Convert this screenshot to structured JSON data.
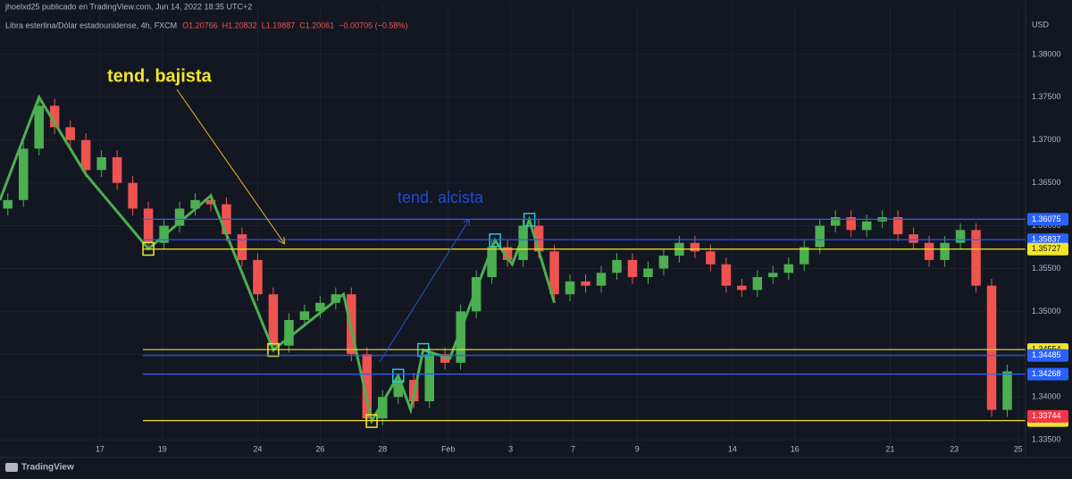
{
  "chart_data": {
    "type": "candlestick",
    "author_line": "jhoelxd25 publicado en TradingView.com, Jun 14, 2022 18:35 UTC+2",
    "symbol": "Libra esterlina/Dólar estadounidense, 4h, FXCM",
    "ohlc_header": [
      "O1.20766",
      "H1.20832",
      "L1.19887",
      "C1.20061",
      "−0.00705 (−0.58%)"
    ],
    "currency": "USD",
    "brand": "TradingView",
    "annotations": [
      "tend. bajista",
      "tend. alcista"
    ],
    "up_color": "#4caf50",
    "down_color": "#ef5350",
    "x": [
      0,
      1,
      2,
      3,
      4,
      5,
      6,
      7,
      8,
      9,
      10,
      11,
      12,
      13,
      14,
      15,
      16,
      17,
      18,
      19,
      20,
      21,
      22,
      23,
      24,
      25,
      26,
      27,
      28,
      29,
      30,
      31,
      32,
      33,
      34,
      35,
      36,
      37,
      38,
      39,
      40,
      41,
      42,
      43,
      44,
      45,
      46,
      47,
      48,
      49,
      50,
      51,
      52,
      53,
      54,
      55,
      56,
      57,
      58,
      59,
      60,
      61,
      62,
      63,
      64
    ],
    "open": [
      1.362,
      1.363,
      1.369,
      1.374,
      1.3715,
      1.37,
      1.3665,
      1.368,
      1.365,
      1.362,
      1.358,
      1.36,
      1.362,
      1.363,
      1.3625,
      1.359,
      1.356,
      1.352,
      1.346,
      1.349,
      1.35,
      1.351,
      1.352,
      1.345,
      1.3375,
      1.34,
      1.342,
      1.3395,
      1.345,
      1.344,
      1.35,
      1.354,
      1.3575,
      1.356,
      1.36,
      1.357,
      1.352,
      1.3535,
      1.353,
      1.3545,
      1.356,
      1.354,
      1.355,
      1.3565,
      1.358,
      1.357,
      1.3555,
      1.353,
      1.3525,
      1.354,
      1.3545,
      1.3555,
      1.3575,
      1.36,
      1.361,
      1.3595,
      1.3605,
      1.361,
      1.359,
      1.358,
      1.356,
      1.358,
      1.3595,
      1.353,
      1.3385
    ],
    "high": [
      1.3638,
      1.3698,
      1.3748,
      1.3748,
      1.3723,
      1.3708,
      1.3688,
      1.3688,
      1.3658,
      1.3628,
      1.3608,
      1.3628,
      1.3638,
      1.3638,
      1.3633,
      1.3598,
      1.3568,
      1.3528,
      1.3498,
      1.3508,
      1.3518,
      1.3528,
      1.3528,
      1.3458,
      1.3408,
      1.3428,
      1.3428,
      1.3458,
      1.3458,
      1.3508,
      1.3548,
      1.3583,
      1.3583,
      1.3608,
      1.3608,
      1.3578,
      1.3543,
      1.3543,
      1.3553,
      1.3568,
      1.3568,
      1.3558,
      1.3573,
      1.3588,
      1.3588,
      1.3578,
      1.3563,
      1.3538,
      1.3548,
      1.3553,
      1.3563,
      1.3583,
      1.3608,
      1.3618,
      1.3618,
      1.3613,
      1.3618,
      1.3618,
      1.3598,
      1.3588,
      1.3588,
      1.3603,
      1.3603,
      1.3538,
      1.3438
    ],
    "low": [
      1.3612,
      1.3622,
      1.3682,
      1.3707,
      1.3692,
      1.3657,
      1.3657,
      1.3642,
      1.3612,
      1.3572,
      1.3572,
      1.3592,
      1.3612,
      1.3617,
      1.3582,
      1.3552,
      1.3512,
      1.3452,
      1.3452,
      1.3482,
      1.3492,
      1.3502,
      1.3442,
      1.3367,
      1.3367,
      1.3392,
      1.3387,
      1.3387,
      1.3432,
      1.3432,
      1.3492,
      1.3532,
      1.3552,
      1.3552,
      1.3562,
      1.3512,
      1.3512,
      1.3522,
      1.3522,
      1.3537,
      1.3532,
      1.3532,
      1.3542,
      1.3557,
      1.3562,
      1.3547,
      1.3522,
      1.3517,
      1.3517,
      1.3532,
      1.3537,
      1.3547,
      1.3567,
      1.3592,
      1.3587,
      1.3587,
      1.3597,
      1.3582,
      1.3572,
      1.3552,
      1.3552,
      1.3572,
      1.3522,
      1.3377,
      1.3377
    ],
    "close": [
      1.363,
      1.369,
      1.374,
      1.3715,
      1.37,
      1.3665,
      1.368,
      1.365,
      1.362,
      1.358,
      1.36,
      1.362,
      1.363,
      1.3625,
      1.359,
      1.356,
      1.352,
      1.346,
      1.349,
      1.35,
      1.351,
      1.352,
      1.345,
      1.3375,
      1.34,
      1.342,
      1.3395,
      1.345,
      1.344,
      1.35,
      1.354,
      1.3575,
      1.356,
      1.36,
      1.357,
      1.352,
      1.3535,
      1.353,
      1.3545,
      1.356,
      1.354,
      1.355,
      1.3565,
      1.358,
      1.357,
      1.3555,
      1.353,
      1.3525,
      1.354,
      1.3545,
      1.3555,
      1.3575,
      1.36,
      1.361,
      1.3595,
      1.3605,
      1.361,
      1.359,
      1.358,
      1.356,
      1.358,
      1.3595,
      1.353,
      1.3385,
      1.343
    ],
    "xlim": [
      -0.5,
      65
    ],
    "ylim": [
      1.3345,
      1.3827
    ],
    "xticks": [
      {
        "value": 5.9,
        "label": "17"
      },
      {
        "value": 9.9,
        "label": "19"
      },
      {
        "value": 16.0,
        "label": "24"
      },
      {
        "value": 20.0,
        "label": "26"
      },
      {
        "value": 24.0,
        "label": "28"
      },
      {
        "value": 28.2,
        "label": "Feb"
      },
      {
        "value": 32.2,
        "label": "3"
      },
      {
        "value": 36.2,
        "label": "7"
      },
      {
        "value": 40.3,
        "label": "9"
      },
      {
        "value": 46.4,
        "label": "14"
      },
      {
        "value": 50.4,
        "label": "16"
      },
      {
        "value": 56.5,
        "label": "21"
      },
      {
        "value": 60.6,
        "label": "23"
      },
      {
        "value": 64.7,
        "label": "25"
      }
    ],
    "yticks": [
      {
        "value": 1.335,
        "label": "1.33500"
      },
      {
        "value": 1.34,
        "label": "1.34000"
      },
      {
        "value": 1.345,
        "label": "1.34500"
      },
      {
        "value": 1.35,
        "label": "1.35000"
      },
      {
        "value": 1.355,
        "label": "1.35500"
      },
      {
        "value": 1.36,
        "label": "1.36000"
      },
      {
        "value": 1.365,
        "label": "1.36500"
      },
      {
        "value": 1.37,
        "label": "1.37000"
      },
      {
        "value": 1.375,
        "label": "1.37500"
      },
      {
        "value": 1.38,
        "label": "1.38000"
      }
    ],
    "grid": true,
    "levels": [
      {
        "value": 1.36075,
        "color": "#2962ff"
      },
      {
        "value": 1.35837,
        "color": "#2962ff"
      },
      {
        "value": 1.35727,
        "color": "#f2e52b"
      },
      {
        "value": 1.34554,
        "color": "#f2e52b"
      },
      {
        "value": 1.34485,
        "color": "#2962ff"
      },
      {
        "value": 1.34268,
        "color": "#2962ff"
      },
      {
        "value": 1.33725,
        "color": "#f2e52b"
      }
    ],
    "last_price": {
      "value": 1.33744,
      "color": "#f23645"
    },
    "zigzag": {
      "color": "#4caf50",
      "x": [
        -0.5,
        2,
        5,
        9,
        13,
        17,
        21.5,
        23.3,
        25,
        25.8,
        26.6,
        28.3,
        31.2,
        32.3,
        33.4,
        35
      ],
      "y": [
        1.363,
        1.375,
        1.366,
        1.3573,
        1.3635,
        1.3455,
        1.352,
        1.3372,
        1.3425,
        1.3385,
        1.3455,
        1.3445,
        1.3583,
        1.3555,
        1.3607,
        1.351
      ]
    },
    "markers": [
      {
        "x": 9,
        "y": 1.3573,
        "color": "#f2e52b"
      },
      {
        "x": 17,
        "y": 1.3455,
        "color": "#f2e52b"
      },
      {
        "x": 23.3,
        "y": 1.3372,
        "color": "#f2e52b"
      },
      {
        "x": 25,
        "y": 1.3425,
        "color": "#26c6da"
      },
      {
        "x": 26.6,
        "y": 1.3455,
        "color": "#26c6da"
      },
      {
        "x": 31.2,
        "y": 1.3583,
        "color": "#26c6da"
      },
      {
        "x": 33.4,
        "y": 1.3607,
        "color": "#26c6da"
      }
    ]
  }
}
